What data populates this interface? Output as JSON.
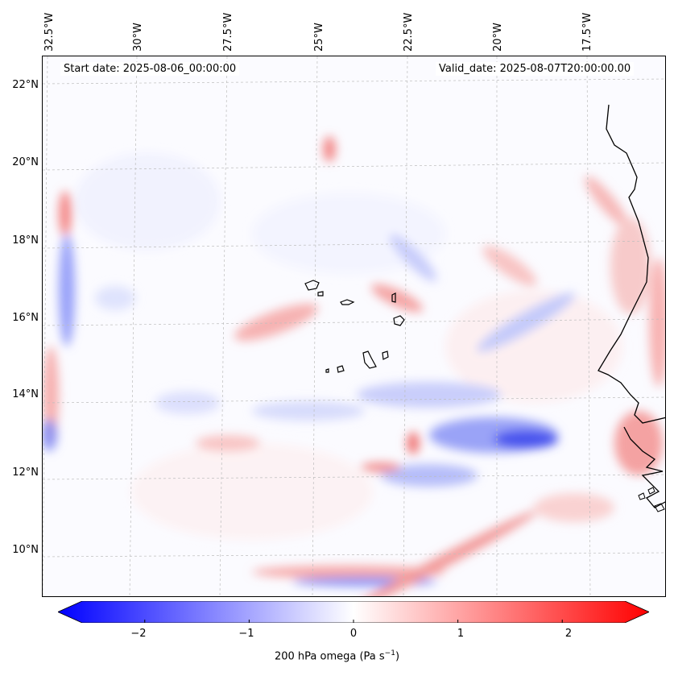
{
  "header": {
    "start_date": "Start date: 2025-08-06_00:00:00",
    "valid_date": "Valid_date: 2025-08-07T20:00:00.00"
  },
  "axes": {
    "longitude_labels": [
      "32.5°W",
      "30°W",
      "27.5°W",
      "25°W",
      "22.5°W",
      "20°W",
      "17.5°W"
    ],
    "latitude_labels": [
      "22°N",
      "20°N",
      "18°N",
      "16°N",
      "14°N",
      "12°N",
      "10°N"
    ]
  },
  "colorbar": {
    "min": -2.6,
    "max": 2.6,
    "ticks": [
      -2,
      -1,
      0,
      1,
      2
    ],
    "tick_labels": [
      "−2",
      "−1",
      "0",
      "1",
      "2"
    ],
    "label_main": "200 hPa omega (Pa s",
    "label_sup": "−1",
    "label_end": ")",
    "low_color": "#0000ff",
    "mid_color": "#ffffff",
    "high_color": "#ff0000"
  },
  "colors": {
    "coastline": "#000000",
    "gridline": "#bdbdbd",
    "background": "#fbfbff"
  }
}
